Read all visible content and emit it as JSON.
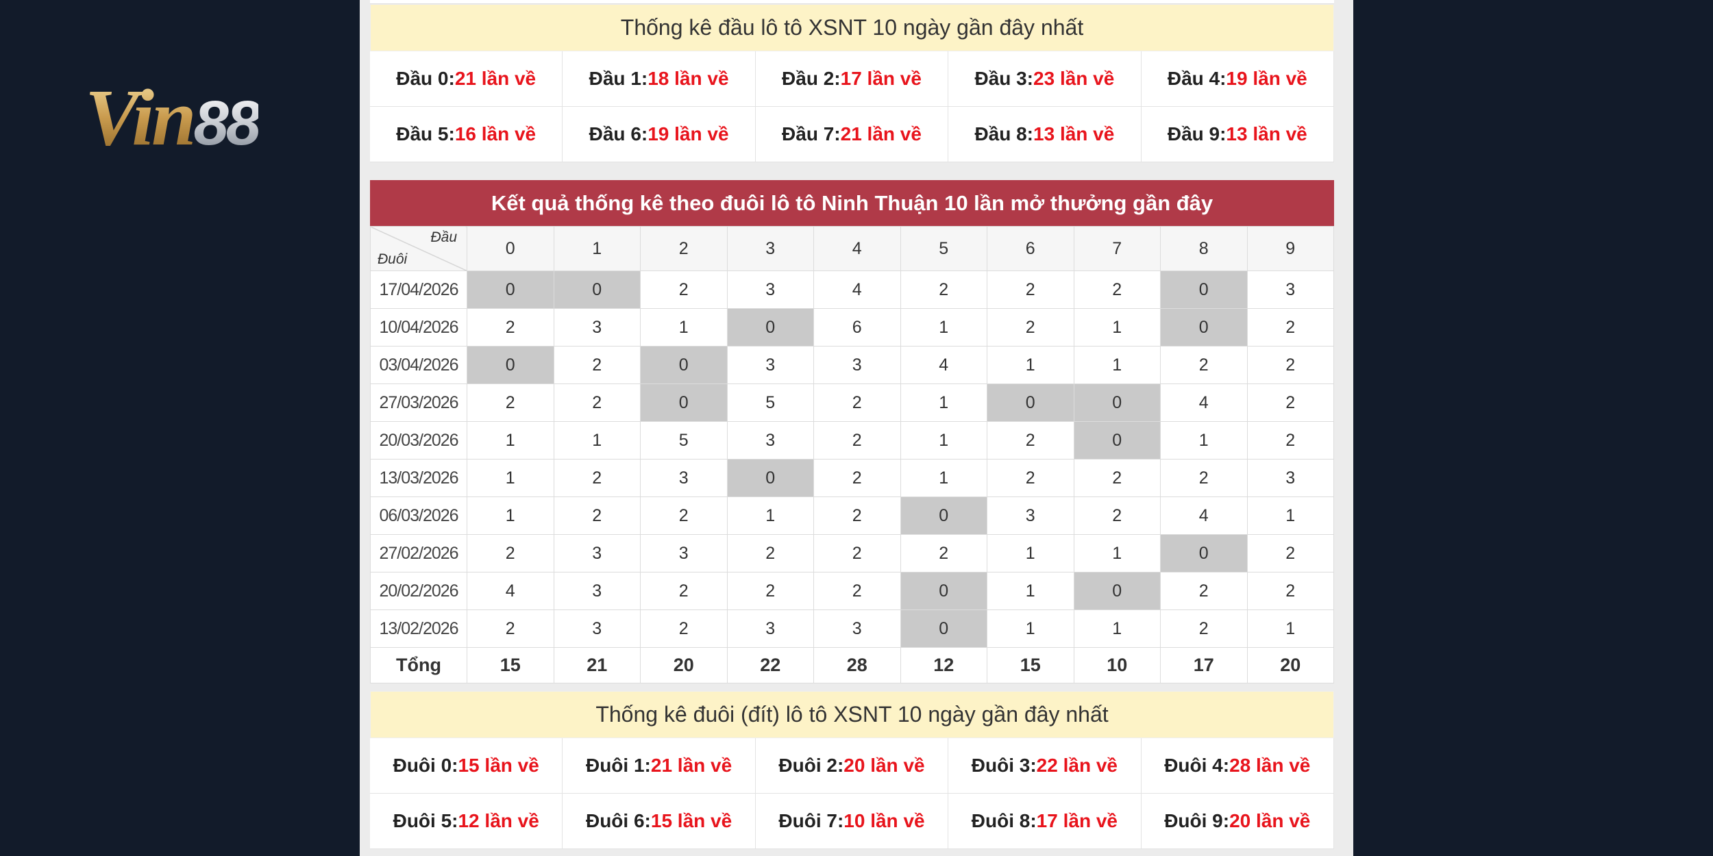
{
  "logo": {
    "main": "Vin",
    "number": "88"
  },
  "dau_stats": {
    "title": "Thống kê đầu lô tô XSNT 10 ngày gần đây nhất",
    "items": [
      {
        "label": "Đầu 0:",
        "value": "21 lần về"
      },
      {
        "label": "Đầu 1:",
        "value": "18 lần về"
      },
      {
        "label": "Đầu 2:",
        "value": "17 lần về"
      },
      {
        "label": "Đầu 3:",
        "value": "23 lần về"
      },
      {
        "label": "Đầu 4:",
        "value": "19 lần về"
      },
      {
        "label": "Đầu 5:",
        "value": "16 lần về"
      },
      {
        "label": "Đầu 6:",
        "value": "19 lần về"
      },
      {
        "label": "Đầu 7:",
        "value": "21 lần về"
      },
      {
        "label": "Đầu 8:",
        "value": "13 lần về"
      },
      {
        "label": "Đầu 9:",
        "value": "13 lần về"
      }
    ]
  },
  "table": {
    "title": "Kết quả thống kê theo đuôi lô tô Ninh Thuận 10 lần mở thưởng gần đây",
    "corner_top": "Đầu",
    "corner_bottom": "Đuôi",
    "columns": [
      "0",
      "1",
      "2",
      "3",
      "4",
      "5",
      "6",
      "7",
      "8",
      "9"
    ],
    "rows": [
      {
        "date": "17/04/2026",
        "values": [
          0,
          0,
          2,
          3,
          4,
          2,
          2,
          2,
          0,
          3
        ]
      },
      {
        "date": "10/04/2026",
        "values": [
          2,
          3,
          1,
          0,
          6,
          1,
          2,
          1,
          0,
          2
        ]
      },
      {
        "date": "03/04/2026",
        "values": [
          0,
          2,
          0,
          3,
          3,
          4,
          1,
          1,
          2,
          2
        ]
      },
      {
        "date": "27/03/2026",
        "values": [
          2,
          2,
          0,
          5,
          2,
          1,
          0,
          0,
          4,
          2
        ]
      },
      {
        "date": "20/03/2026",
        "values": [
          1,
          1,
          5,
          3,
          2,
          1,
          2,
          0,
          1,
          2
        ]
      },
      {
        "date": "13/03/2026",
        "values": [
          1,
          2,
          3,
          0,
          2,
          1,
          2,
          2,
          2,
          3
        ]
      },
      {
        "date": "06/03/2026",
        "values": [
          1,
          2,
          2,
          1,
          2,
          0,
          3,
          2,
          4,
          1
        ]
      },
      {
        "date": "27/02/2026",
        "values": [
          2,
          3,
          3,
          2,
          2,
          2,
          1,
          1,
          0,
          2
        ]
      },
      {
        "date": "20/02/2026",
        "values": [
          4,
          3,
          2,
          2,
          2,
          0,
          1,
          0,
          2,
          2
        ]
      },
      {
        "date": "13/02/2026",
        "values": [
          2,
          3,
          2,
          3,
          3,
          0,
          1,
          1,
          2,
          1
        ]
      }
    ],
    "total_label": "Tổng",
    "totals": [
      15,
      21,
      20,
      22,
      28,
      12,
      15,
      10,
      17,
      20
    ]
  },
  "duoi_stats": {
    "title": "Thống kê đuôi (đít) lô tô XSNT 10 ngày gần đây nhất",
    "items": [
      {
        "label": "Đuôi 0:",
        "value": "15 lần về"
      },
      {
        "label": "Đuôi 1:",
        "value": "21 lần về"
      },
      {
        "label": "Đuôi 2:",
        "value": "20 lần về"
      },
      {
        "label": "Đuôi 3:",
        "value": "22 lần về"
      },
      {
        "label": "Đuôi 4:",
        "value": "28 lần về"
      },
      {
        "label": "Đuôi 5:",
        "value": "12 lần về"
      },
      {
        "label": "Đuôi 6:",
        "value": "15 lần về"
      },
      {
        "label": "Đuôi 7:",
        "value": "10 lần về"
      },
      {
        "label": "Đuôi 8:",
        "value": "17 lần về"
      },
      {
        "label": "Đuôi 9:",
        "value": "20 lần về"
      }
    ]
  }
}
